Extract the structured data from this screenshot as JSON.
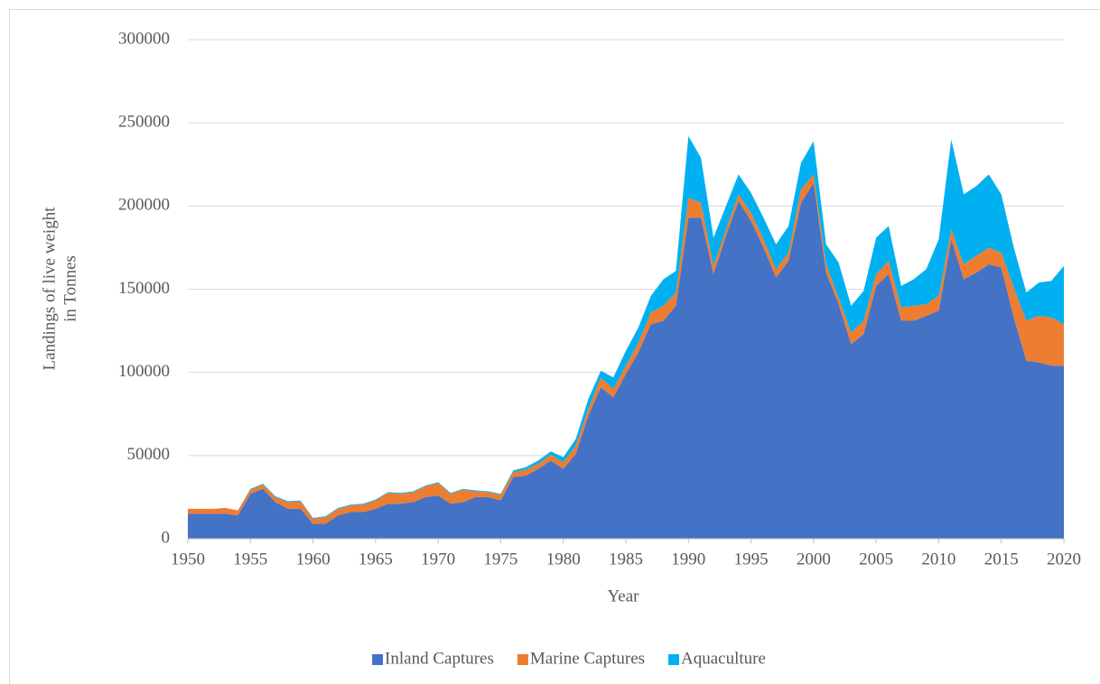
{
  "chart_data": {
    "type": "stacked_area",
    "ylabel": [
      "Landings of live weight",
      "in Tonnes"
    ],
    "xlabel": "Year",
    "x": [
      1950,
      1951,
      1952,
      1953,
      1954,
      1955,
      1956,
      1957,
      1958,
      1959,
      1960,
      1961,
      1962,
      1963,
      1964,
      1965,
      1966,
      1967,
      1968,
      1969,
      1970,
      1971,
      1972,
      1973,
      1974,
      1975,
      1976,
      1977,
      1978,
      1979,
      1980,
      1981,
      1982,
      1983,
      1984,
      1985,
      1986,
      1987,
      1988,
      1989,
      1990,
      1991,
      1992,
      1993,
      1994,
      1995,
      1996,
      1997,
      1998,
      1999,
      2000,
      2001,
      2002,
      2003,
      2004,
      2005,
      2006,
      2007,
      2008,
      2009,
      2010,
      2011,
      2012,
      2013,
      2014,
      2015,
      2016,
      2017,
      2018,
      2019,
      2020
    ],
    "series": [
      {
        "name": "Inland Captures",
        "color": "#4472c4",
        "values": [
          15000,
          15000,
          15000,
          15000,
          14000,
          27000,
          30000,
          22000,
          18000,
          18000,
          9000,
          9000,
          14000,
          16000,
          16000,
          18000,
          21000,
          21000,
          22000,
          25000,
          26000,
          21000,
          22000,
          25000,
          25000,
          23000,
          37000,
          38000,
          42000,
          47000,
          42000,
          51000,
          74000,
          91000,
          85000,
          99000,
          112000,
          129000,
          131000,
          140000,
          193000,
          193000,
          159000,
          182000,
          203000,
          191000,
          175000,
          157000,
          167000,
          202000,
          214000,
          160000,
          141000,
          117000,
          123000,
          152000,
          159000,
          131000,
          131000,
          134000,
          137000,
          180000,
          156000,
          160000,
          165000,
          163000,
          133000,
          107000,
          106000,
          104000,
          104000
        ]
      },
      {
        "name": "Marine Captures",
        "color": "#ed7d31",
        "values": [
          3000,
          3000,
          3000,
          3500,
          3000,
          2500,
          2500,
          3000,
          4000,
          4500,
          3000,
          4000,
          4000,
          4000,
          4500,
          5000,
          6500,
          6000,
          6000,
          6500,
          7500,
          6000,
          7500,
          3500,
          3000,
          3500,
          3000,
          3500,
          3000,
          3500,
          4000,
          5000,
          4000,
          6000,
          5000,
          5000,
          6000,
          7000,
          9000,
          8000,
          12000,
          9000,
          5000,
          4000,
          4000,
          5000,
          5000,
          5000,
          5000,
          8000,
          5000,
          5000,
          4000,
          7000,
          8000,
          7000,
          8000,
          8000,
          9000,
          7000,
          9000,
          6000,
          9000,
          10000,
          10000,
          9000,
          18000,
          24000,
          28000,
          29000,
          25000
        ]
      },
      {
        "name": "Aquaculture",
        "color": "#00b0f0",
        "values": [
          0,
          0,
          0,
          0,
          0,
          500,
          500,
          500,
          500,
          500,
          500,
          500,
          500,
          500,
          500,
          500,
          500,
          500,
          500,
          500,
          500,
          500,
          500,
          500,
          500,
          500,
          1000,
          1500,
          2000,
          2000,
          3000,
          4000,
          6000,
          4000,
          7000,
          9000,
          9000,
          10000,
          16000,
          13000,
          37000,
          27000,
          17000,
          14000,
          12000,
          12000,
          13000,
          15000,
          16000,
          16000,
          20000,
          12000,
          21000,
          16000,
          18000,
          22000,
          21000,
          13000,
          16000,
          21000,
          34000,
          54000,
          42000,
          42000,
          44000,
          35000,
          24000,
          17000,
          20000,
          22000,
          35000
        ]
      }
    ],
    "xlim": [
      1950,
      2020
    ],
    "xticks": [
      1950,
      1955,
      1960,
      1965,
      1970,
      1975,
      1980,
      1985,
      1990,
      1995,
      2000,
      2005,
      2010,
      2015,
      2020
    ],
    "ylim": [
      0,
      300000
    ],
    "yticks": [
      0,
      50000,
      100000,
      150000,
      200000,
      250000,
      300000
    ],
    "grid": true,
    "legend": "bottom"
  }
}
